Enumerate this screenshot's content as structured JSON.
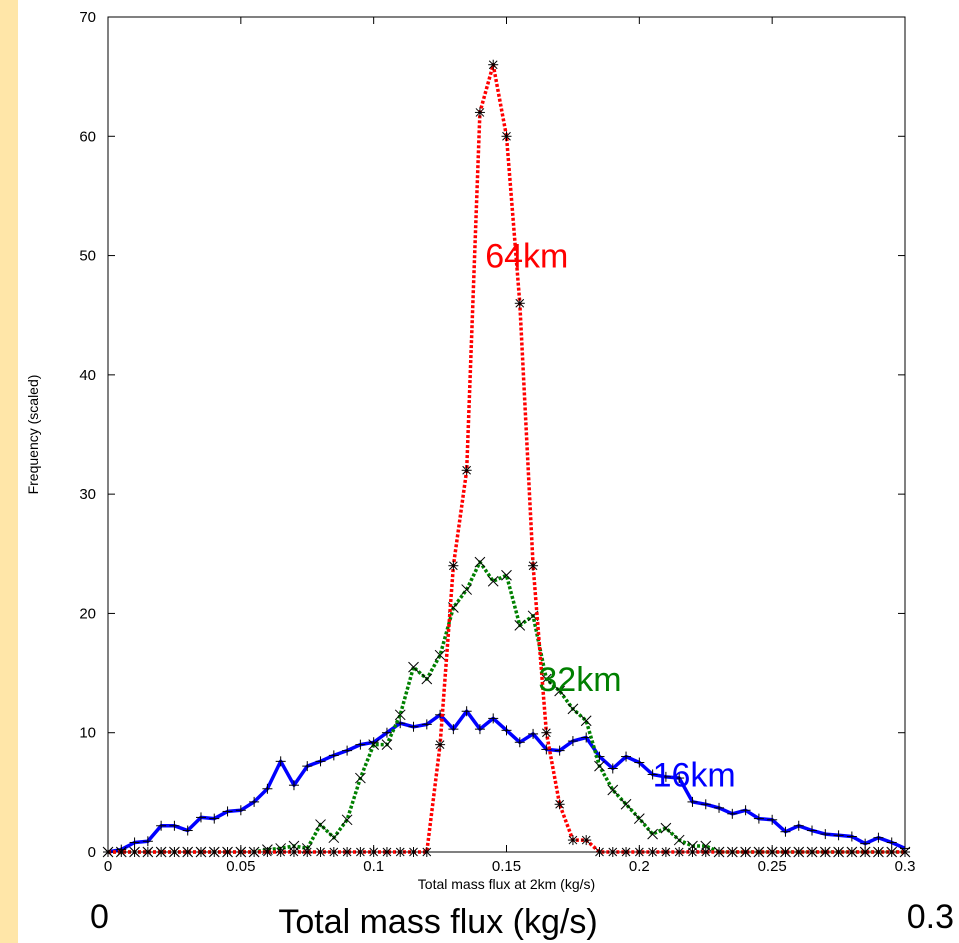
{
  "chart_data": {
    "type": "line",
    "xlabel": "Total mass flux at 2km (kg/s)",
    "ylabel": "Frequency (scaled)",
    "xlim": [
      0,
      0.3
    ],
    "ylim": [
      0,
      70
    ],
    "x_ticks": [
      "0",
      "0.05",
      "0.1",
      "0.15",
      "0.2",
      "0.25",
      "0.3"
    ],
    "y_ticks": [
      "0",
      "10",
      "20",
      "30",
      "40",
      "50",
      "60",
      "70"
    ],
    "grid": false,
    "bottom_caption": "Total mass flux (kg/s)",
    "bottom_left": "0",
    "bottom_right": "0.3",
    "series": [
      {
        "name": "64km",
        "color": "#ff0000",
        "style": "dotted",
        "marker": "star",
        "x": [
          0,
          0.005,
          0.01,
          0.015,
          0.02,
          0.025,
          0.03,
          0.035,
          0.04,
          0.045,
          0.05,
          0.055,
          0.06,
          0.065,
          0.07,
          0.075,
          0.08,
          0.085,
          0.09,
          0.095,
          0.1,
          0.105,
          0.11,
          0.115,
          0.12,
          0.125,
          0.13,
          0.135,
          0.14,
          0.145,
          0.15,
          0.155,
          0.16,
          0.165,
          0.17,
          0.175,
          0.18,
          0.185,
          0.19,
          0.195,
          0.2,
          0.205,
          0.21,
          0.215,
          0.22,
          0.225,
          0.23,
          0.235,
          0.24,
          0.245,
          0.25,
          0.255,
          0.26,
          0.265,
          0.27,
          0.275,
          0.28,
          0.285,
          0.29,
          0.295,
          0.3
        ],
        "y": [
          0,
          0,
          0,
          0,
          0,
          0,
          0,
          0,
          0,
          0,
          0,
          0,
          0,
          0,
          0,
          0,
          0,
          0,
          0,
          0,
          0,
          0,
          0,
          0,
          0,
          9,
          24,
          32,
          62,
          66,
          60,
          46,
          24,
          10,
          4,
          1,
          1,
          0,
          0,
          0,
          0,
          0,
          0,
          0,
          0,
          0,
          0,
          0,
          0,
          0,
          0,
          0,
          0,
          0,
          0,
          0,
          0,
          0,
          0,
          0,
          0
        ]
      },
      {
        "name": "32km",
        "color": "#008000",
        "style": "dotted",
        "marker": "x",
        "x": [
          0,
          0.005,
          0.01,
          0.015,
          0.02,
          0.025,
          0.03,
          0.035,
          0.04,
          0.045,
          0.05,
          0.055,
          0.06,
          0.065,
          0.07,
          0.075,
          0.08,
          0.085,
          0.09,
          0.095,
          0.1,
          0.105,
          0.11,
          0.115,
          0.12,
          0.125,
          0.13,
          0.135,
          0.14,
          0.145,
          0.15,
          0.155,
          0.16,
          0.165,
          0.17,
          0.175,
          0.18,
          0.185,
          0.19,
          0.195,
          0.2,
          0.205,
          0.21,
          0.215,
          0.22,
          0.225,
          0.23,
          0.235,
          0.24,
          0.245,
          0.25,
          0.255,
          0.26,
          0.265,
          0.27,
          0.275,
          0.28,
          0.285,
          0.29,
          0.295,
          0.3
        ],
        "y": [
          0,
          0,
          0,
          0,
          0,
          0,
          0,
          0,
          0,
          0,
          0,
          0,
          0.2,
          0.3,
          0.5,
          0.3,
          2.3,
          1.2,
          2.7,
          6.2,
          9.0,
          9.0,
          11.5,
          15.5,
          14.5,
          16.5,
          20.5,
          22.0,
          24.3,
          22.7,
          23.2,
          19.0,
          19.8,
          14.5,
          13.5,
          12.0,
          11.0,
          7.2,
          5.2,
          4.0,
          2.8,
          1.5,
          2.0,
          1.0,
          0.5,
          0.5,
          0,
          0,
          0,
          0,
          0,
          0,
          0,
          0,
          0,
          0,
          0,
          0,
          0,
          0,
          0
        ]
      },
      {
        "name": "16km",
        "color": "#0000ff",
        "style": "solid",
        "marker": "plus",
        "x": [
          0,
          0.005,
          0.01,
          0.015,
          0.02,
          0.025,
          0.03,
          0.035,
          0.04,
          0.045,
          0.05,
          0.055,
          0.06,
          0.065,
          0.07,
          0.075,
          0.08,
          0.085,
          0.09,
          0.095,
          0.1,
          0.105,
          0.11,
          0.115,
          0.12,
          0.125,
          0.13,
          0.135,
          0.14,
          0.145,
          0.15,
          0.155,
          0.16,
          0.165,
          0.17,
          0.175,
          0.18,
          0.185,
          0.19,
          0.195,
          0.2,
          0.205,
          0.21,
          0.215,
          0.22,
          0.225,
          0.23,
          0.235,
          0.24,
          0.245,
          0.25,
          0.255,
          0.26,
          0.265,
          0.27,
          0.275,
          0.28,
          0.285,
          0.29,
          0.295,
          0.3
        ],
        "y": [
          0,
          0.2,
          0.8,
          0.9,
          2.2,
          2.2,
          1.8,
          2.9,
          2.8,
          3.4,
          3.5,
          4.2,
          5.3,
          7.6,
          5.6,
          7.2,
          7.6,
          8.1,
          8.5,
          9.0,
          9.2,
          10.0,
          10.8,
          10.5,
          10.7,
          11.5,
          10.3,
          11.8,
          10.3,
          11.2,
          10.2,
          9.2,
          9.9,
          8.6,
          8.5,
          9.3,
          9.6,
          8.0,
          7.0,
          8.0,
          7.5,
          6.5,
          6.3,
          6.2,
          4.2,
          4.0,
          3.7,
          3.2,
          3.5,
          2.8,
          2.7,
          1.7,
          2.2,
          1.8,
          1.5,
          1.4,
          1.3,
          0.7,
          1.2,
          0.8,
          0.3
        ]
      }
    ]
  }
}
